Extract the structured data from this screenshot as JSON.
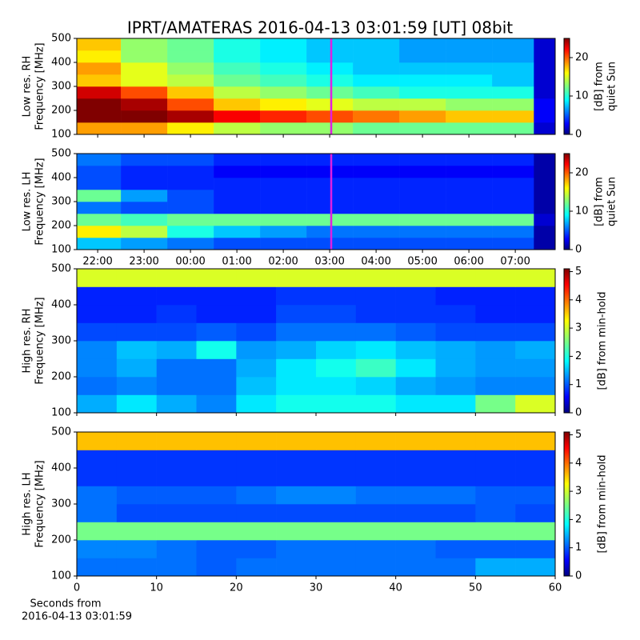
{
  "title": "IPRT/AMATERAS 2016-04-13 03:01:59 [UT]   08bit",
  "xlabel": [
    "Seconds from",
    "2016-04-13 03:01:59"
  ],
  "chart_data": [
    {
      "type": "heatmap",
      "ylabel": [
        "Low res. RH",
        "Frequency [MHz]"
      ],
      "colorbar_label": [
        "[dB] from",
        "quiet Sun"
      ],
      "xlim": [
        21.55,
        31.86
      ],
      "ylim": [
        100,
        500
      ],
      "yticks": [
        100,
        200,
        300,
        400,
        500
      ],
      "zlim": [
        0,
        25
      ],
      "zticks": [
        0,
        10,
        20
      ],
      "vline": 27.033,
      "vline_color": "#e020e0",
      "x_bins": [
        21.55,
        22.5,
        23.5,
        24.5,
        25.5,
        26.5,
        27.5,
        28.5,
        29.5,
        30.5,
        31.4,
        31.86
      ],
      "y_bins": [
        100,
        150,
        200,
        250,
        300,
        350,
        400,
        450,
        500
      ],
      "values": [
        [
          18,
          18,
          16,
          14,
          13,
          13,
          12,
          12,
          12,
          12,
          2
        ],
        [
          25,
          25,
          24,
          22,
          21,
          20,
          19,
          18,
          17,
          17,
          3
        ],
        [
          25,
          24,
          20,
          17,
          16,
          15,
          14,
          14,
          13,
          13,
          3
        ],
        [
          23,
          20,
          17,
          14,
          13,
          12,
          11,
          10,
          10,
          10,
          2
        ],
        [
          17,
          15,
          14,
          12,
          11,
          10,
          9,
          9,
          9,
          8,
          2
        ],
        [
          18,
          15,
          13,
          11,
          10,
          9,
          8,
          8,
          8,
          8,
          2
        ],
        [
          16,
          13,
          12,
          10,
          9,
          8,
          8,
          7,
          7,
          7,
          2
        ],
        [
          17,
          13,
          12,
          10,
          9,
          8,
          8,
          7,
          7,
          7,
          2
        ]
      ]
    },
    {
      "type": "heatmap",
      "ylabel": [
        "Low res. LH",
        "Frequency [MHz]"
      ],
      "colorbar_label": [
        "[dB] from",
        "quiet Sun"
      ],
      "xlim": [
        21.55,
        31.86
      ],
      "ylim": [
        100,
        500
      ],
      "yticks": [
        100,
        200,
        300,
        400,
        500
      ],
      "xticks": [
        {
          "value": 22,
          "label": "22:00"
        },
        {
          "value": 23,
          "label": "23:00"
        },
        {
          "value": 24,
          "label": "00:00"
        },
        {
          "value": 25,
          "label": "01:00"
        },
        {
          "value": 26,
          "label": "02:00"
        },
        {
          "value": 27,
          "label": "03:00"
        },
        {
          "value": 28,
          "label": "04:00"
        },
        {
          "value": 29,
          "label": "05:00"
        },
        {
          "value": 30,
          "label": "06:00"
        },
        {
          "value": 31,
          "label": "07:00"
        }
      ],
      "zlim": [
        0,
        25
      ],
      "zticks": [
        0,
        10,
        20
      ],
      "vline": 27.033,
      "vline_color": "#e020e0",
      "x_bins": [
        21.55,
        22.5,
        23.5,
        24.5,
        25.5,
        26.5,
        27.5,
        28.5,
        29.5,
        30.5,
        31.4,
        31.86
      ],
      "y_bins": [
        100,
        150,
        200,
        250,
        300,
        350,
        400,
        450,
        500
      ],
      "values": [
        [
          8,
          7,
          6,
          5,
          5,
          5,
          5,
          5,
          5,
          5,
          1
        ],
        [
          16,
          14,
          10,
          8,
          7,
          6,
          6,
          6,
          6,
          6,
          1
        ],
        [
          12,
          11,
          12,
          12,
          12,
          12,
          12,
          12,
          12,
          12,
          2
        ],
        [
          6,
          5,
          5,
          4,
          4,
          4,
          4,
          4,
          4,
          4,
          1
        ],
        [
          12,
          7,
          5,
          4,
          4,
          4,
          4,
          4,
          4,
          4,
          1
        ],
        [
          5,
          4,
          4,
          4,
          4,
          4,
          4,
          4,
          4,
          4,
          1
        ],
        [
          5,
          4,
          4,
          3,
          3,
          3,
          3,
          3,
          3,
          3,
          1
        ],
        [
          6,
          5,
          5,
          4,
          4,
          4,
          4,
          4,
          4,
          4,
          1
        ]
      ]
    },
    {
      "type": "heatmap",
      "ylabel": [
        "High res. RH",
        "Frequency [MHz]"
      ],
      "colorbar_label": [
        "[dB] from min-hold"
      ],
      "xlim": [
        0,
        60
      ],
      "xticks": [
        0,
        10,
        20,
        30,
        40,
        50,
        60
      ],
      "xtick_labels": false,
      "ylim": [
        100,
        500
      ],
      "yticks": [
        100,
        200,
        300,
        400,
        500
      ],
      "zlim": [
        0,
        5.1
      ],
      "zticks": [
        0,
        1,
        2,
        3,
        4,
        5
      ],
      "x_bins": [
        0,
        5,
        10,
        15,
        20,
        25,
        30,
        35,
        40,
        45,
        50,
        55,
        60
      ],
      "y_bins": [
        100,
        150,
        200,
        250,
        300,
        350,
        400,
        450,
        500
      ],
      "values": [
        [
          1.5,
          1.8,
          1.5,
          1.3,
          1.8,
          2,
          2,
          2,
          1.8,
          1.8,
          2.5,
          3
        ],
        [
          1.2,
          1.3,
          1.2,
          1.2,
          1.6,
          1.8,
          1.8,
          1.7,
          1.5,
          1.4,
          1.3,
          1.3
        ],
        [
          1.3,
          1.5,
          1.2,
          1.2,
          1.5,
          1.8,
          2,
          2.2,
          1.8,
          1.5,
          1.4,
          1.4
        ],
        [
          1.3,
          1.6,
          1.5,
          2,
          1.4,
          1.5,
          1.7,
          1.8,
          1.6,
          1.5,
          1.4,
          1.5
        ],
        [
          1,
          1,
          1,
          1.1,
          1,
          1.2,
          1.2,
          1.2,
          1.1,
          1,
          1,
          1
        ],
        [
          0.8,
          0.8,
          0.9,
          0.8,
          0.8,
          1,
          1,
          0.9,
          0.9,
          0.9,
          0.8,
          0.8
        ],
        [
          0.8,
          0.8,
          0.8,
          0.8,
          0.8,
          0.9,
          0.9,
          0.9,
          0.9,
          0.8,
          0.8,
          0.8
        ],
        [
          3,
          3,
          3,
          3,
          3,
          3,
          3,
          3,
          3,
          3,
          3,
          3
        ]
      ]
    },
    {
      "type": "heatmap",
      "ylabel": [
        "High res. LH",
        "Frequency [MHz]"
      ],
      "colorbar_label": [
        "[dB] from min-hold"
      ],
      "xlim": [
        0,
        60
      ],
      "xticks": [
        0,
        10,
        20,
        30,
        40,
        50,
        60
      ],
      "xtick_labels": true,
      "ylim": [
        100,
        500
      ],
      "yticks": [
        100,
        200,
        300,
        400,
        500
      ],
      "zlim": [
        0,
        5.1
      ],
      "zticks": [
        0,
        1,
        2,
        3,
        4,
        5
      ],
      "x_bins": [
        0,
        5,
        10,
        15,
        20,
        25,
        30,
        35,
        40,
        45,
        50,
        55,
        60
      ],
      "y_bins": [
        100,
        150,
        200,
        250,
        300,
        350,
        400,
        450,
        500
      ],
      "values": [
        [
          1.2,
          1.2,
          1.2,
          1.1,
          1.2,
          1.2,
          1.2,
          1.2,
          1.2,
          1.2,
          1.5,
          1.5
        ],
        [
          1.3,
          1.3,
          1.2,
          1.1,
          1.1,
          1.2,
          1.2,
          1.2,
          1.2,
          1.1,
          1.1,
          1.1
        ],
        [
          2.5,
          2.5,
          2.5,
          2.5,
          2.5,
          2.5,
          2.5,
          2.5,
          2.5,
          2.5,
          2.5,
          2.5
        ],
        [
          1.2,
          1,
          1,
          1,
          1,
          1,
          1,
          1,
          1,
          1,
          1.1,
          1
        ],
        [
          1.2,
          1.1,
          1.1,
          1.1,
          1.2,
          1.3,
          1.3,
          1.2,
          1.2,
          1.2,
          1.1,
          1.1
        ],
        [
          0.9,
          0.9,
          0.9,
          0.9,
          0.9,
          0.9,
          0.9,
          0.9,
          0.9,
          0.9,
          0.9,
          0.9
        ],
        [
          0.9,
          0.9,
          0.9,
          0.9,
          0.9,
          0.9,
          0.9,
          0.9,
          0.9,
          0.9,
          0.9,
          0.9
        ],
        [
          3.5,
          3.5,
          3.5,
          3.5,
          3.5,
          3.5,
          3.5,
          3.5,
          3.5,
          3.5,
          3.5,
          3.5
        ]
      ]
    }
  ]
}
